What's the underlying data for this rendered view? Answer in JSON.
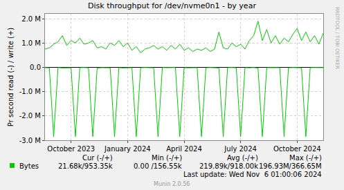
{
  "chart_data": {
    "type": "line",
    "title": "Disk throughput for /dev/nvme0n1 - by year",
    "y_label": "Pr second read (-) / write (+)",
    "categories": [
      null,
      null,
      null,
      null,
      null,
      null,
      "October 2023",
      null,
      null,
      null,
      null,
      null,
      null,
      null,
      null,
      null,
      null,
      null,
      null,
      "January 2024",
      null,
      null,
      null,
      null,
      null,
      null,
      null,
      null,
      null,
      null,
      null,
      null,
      "April 2024",
      null,
      null,
      null,
      null,
      null,
      null,
      null,
      null,
      null,
      null,
      null,
      null,
      "July 2024",
      null,
      null,
      null,
      null,
      null,
      null,
      null,
      null,
      null,
      null,
      null,
      null,
      "October 2024",
      null,
      null,
      null,
      null,
      null,
      null
    ],
    "series": [
      {
        "name": "Bytes",
        "color": "#00cc00",
        "values": [
          750000,
          800000,
          950000,
          1050000,
          1300000,
          900000,
          1100000,
          1000000,
          1200000,
          950000,
          1000000,
          1100000,
          800000,
          850000,
          750000,
          1000000,
          900000,
          1100000,
          850000,
          1000000,
          700000,
          850000,
          600000,
          750000,
          800000,
          900000,
          750000,
          850000,
          700000,
          900000,
          750000,
          950000,
          700000,
          800000,
          650000,
          750000,
          700000,
          800000,
          650000,
          750000,
          1450000,
          800000,
          750000,
          1000000,
          850000,
          950000,
          750000,
          1100000,
          1300000,
          1900000,
          1100000,
          1550000,
          1000000,
          1300000,
          950000,
          1200000,
          1050000,
          1350000,
          1600000,
          1100000,
          1450000,
          1050000,
          1300000,
          950000,
          1400000
        ]
      },
      {
        "color": "#00cc00",
        "values": [
          -15000,
          -20000,
          -2850000,
          -10000,
          -25000,
          -15000,
          -20000,
          -2850000,
          -15000,
          -10000,
          -20000,
          -2850000,
          -30000,
          -15000,
          -10000,
          -20000,
          -2850000,
          -15000,
          -25000,
          -10000,
          -15000,
          -2850000,
          -20000,
          -10000,
          -15000,
          -20000,
          -2850000,
          -10000,
          -15000,
          -20000,
          -10000,
          -2850000,
          -15000,
          -20000,
          -10000,
          -15000,
          -2850000,
          -20000,
          -10000,
          -15000,
          -25000,
          -2850000,
          -15000,
          -10000,
          -20000,
          -2850000,
          -15000,
          -20000,
          -10000,
          -30000,
          -2850000,
          -15000,
          -20000,
          -10000,
          -15000,
          -2850000,
          -20000,
          -10000,
          -15000,
          -20000,
          -2850000,
          -15000,
          -10000,
          -20000,
          -15000
        ]
      }
    ],
    "ylim": [
      -3000000,
      2200000
    ],
    "yticks": [
      {
        "value": -3000000,
        "label": "-3.0 M"
      },
      {
        "value": -2000000,
        "label": "-2.0 M"
      },
      {
        "value": -1000000,
        "label": "-1.0 M"
      },
      {
        "value": 0,
        "label": "0.0"
      },
      {
        "value": 1000000,
        "label": "1.0 M"
      },
      {
        "value": 2000000,
        "label": "2.0 M"
      }
    ],
    "grid": true,
    "stats_table": {
      "headers": [
        "Cur (-/+)",
        "Min (-/+)",
        "Avg (-/+)",
        "Max (-/+)"
      ],
      "row_name": "Bytes",
      "cells": [
        "21.68k/953.35k",
        "0.00 /156.55k",
        "219.89k/918.00k",
        "196.93M/366.65M"
      ]
    },
    "last_update": "Last update: Wed Nov  6 01:00:06 2024",
    "credit": "Munin 2.0.56",
    "side_text": "RRDTOOL / TOBI OETIKER"
  }
}
